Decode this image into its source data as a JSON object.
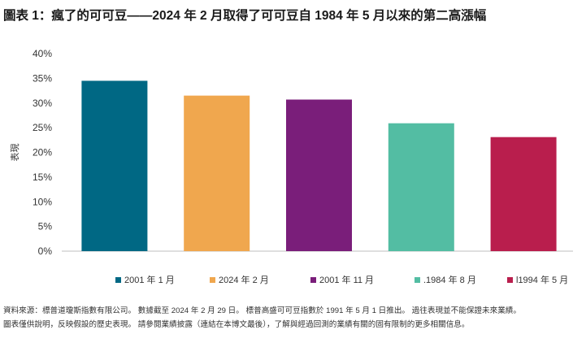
{
  "title": "圖表 1：瘋了的可可豆——2024 年 2 月取得了可可豆自 1984 年 5 月以來的第二高漲幅",
  "chart_data": {
    "type": "bar",
    "ylabel": "表現",
    "ylim": [
      0,
      40
    ],
    "yticks": [
      0,
      5,
      10,
      15,
      20,
      25,
      30,
      35,
      40
    ],
    "ytick_labels": [
      "0%",
      "5%",
      "10%",
      "15%",
      "20%",
      "25%",
      "30%",
      "35%",
      "40%"
    ],
    "categories": [
      "2001 年 1 月",
      "2024 年 2 月",
      "2001 年 11 月",
      "1984 年 8 月",
      "1994 年 5 月"
    ],
    "legend_labels": [
      "2001 年 1 月",
      "2024 年 2 月",
      "2001 年 11 月",
      ".1984 年 8 月",
      "l1994 年 5 月"
    ],
    "values": [
      34.5,
      31.5,
      30.7,
      25.9,
      23.1
    ],
    "colors": [
      "#006884",
      "#F0A74E",
      "#7A1E7A",
      "#53BDA3",
      "#B91E4D"
    ],
    "grid": false,
    "legend_position": "bottom"
  },
  "footnote": {
    "line1": "資料來源：標普道瓊斯指數有限公司。 數據截至 2024 年 2 月 29 日。 標普高盛可可豆指數於 1991 年 5 月 1 日推出。 過往表現並不能保證未來業績。",
    "line2": "圖表僅供說明，反映假設的歷史表現。 請參閱業績披露（連結在本博文最後），了解與經過回測的業績有關的固有限制的更多相關信息。"
  }
}
